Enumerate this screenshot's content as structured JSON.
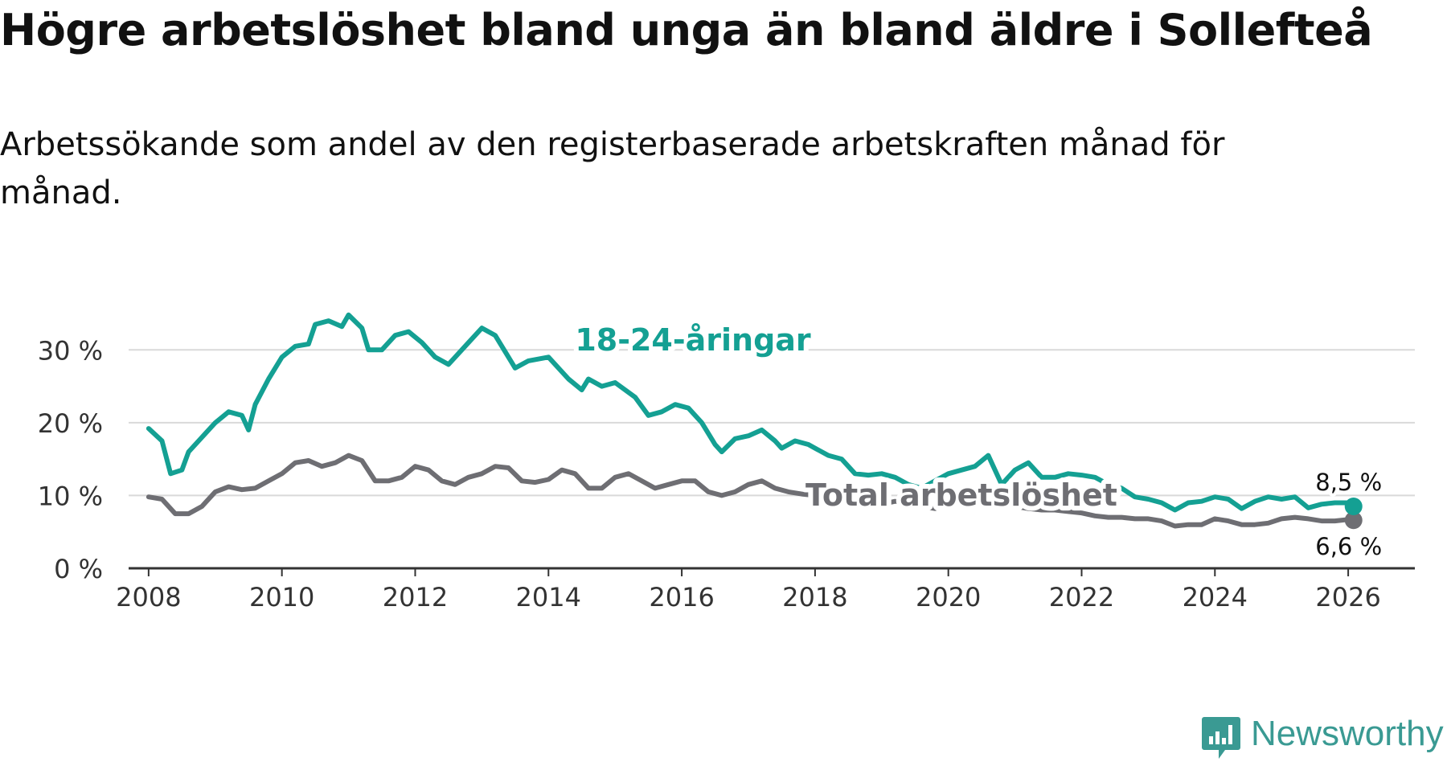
{
  "header": {
    "title": "Högre arbetslöshet bland unga än bland äldre i Sollefteå",
    "subtitle": "Arbetssökande som andel av den registerbaserade arbetskraften månad för månad."
  },
  "brand": {
    "name": "Newsworthy",
    "icon": "newsworthy-logo-icon",
    "color": "#3a9a93"
  },
  "colors": {
    "youth": "#14a093",
    "total": "#6e6e73",
    "grid": "#d9d9d9",
    "axis": "#333333"
  },
  "chart_data": {
    "type": "line",
    "title": "Högre arbetslöshet bland unga än bland äldre i Sollefteå",
    "subtitle": "Arbetssökande som andel av den registerbaserade arbetskraften månad för månad.",
    "xlabel": "",
    "ylabel": "",
    "xlim": [
      2007.7,
      2027.0
    ],
    "ylim": [
      0,
      35
    ],
    "x_ticks": [
      {
        "value": 2008,
        "label": "2008"
      },
      {
        "value": 2010,
        "label": "2010"
      },
      {
        "value": 2012,
        "label": "2012"
      },
      {
        "value": 2014,
        "label": "2014"
      },
      {
        "value": 2016,
        "label": "2016"
      },
      {
        "value": 2018,
        "label": "2018"
      },
      {
        "value": 2020,
        "label": "2020"
      },
      {
        "value": 2022,
        "label": "2022"
      },
      {
        "value": 2024,
        "label": "2024"
      },
      {
        "value": 2026,
        "label": "2026"
      }
    ],
    "y_ticks": [
      {
        "value": 0,
        "label": "0 %"
      },
      {
        "value": 10,
        "label": "10 %"
      },
      {
        "value": 20,
        "label": "20 %"
      },
      {
        "value": 30,
        "label": "30 %"
      }
    ],
    "grid": true,
    "series": [
      {
        "name": "18-24-åringar",
        "label": "18-24-åringar",
        "end_label": "8,5 %",
        "color": "#14a093",
        "points": [
          [
            2008.0,
            19.2
          ],
          [
            2008.2,
            17.5
          ],
          [
            2008.33,
            13.0
          ],
          [
            2008.5,
            13.5
          ],
          [
            2008.6,
            16.0
          ],
          [
            2008.8,
            18.0
          ],
          [
            2009.0,
            20.0
          ],
          [
            2009.2,
            21.5
          ],
          [
            2009.4,
            21.0
          ],
          [
            2009.5,
            19.0
          ],
          [
            2009.6,
            22.5
          ],
          [
            2009.8,
            26.0
          ],
          [
            2010.0,
            29.0
          ],
          [
            2010.2,
            30.5
          ],
          [
            2010.4,
            30.8
          ],
          [
            2010.5,
            33.5
          ],
          [
            2010.7,
            34.0
          ],
          [
            2010.9,
            33.2
          ],
          [
            2011.0,
            34.8
          ],
          [
            2011.2,
            33.0
          ],
          [
            2011.3,
            30.0
          ],
          [
            2011.5,
            30.0
          ],
          [
            2011.7,
            32.0
          ],
          [
            2011.9,
            32.5
          ],
          [
            2012.1,
            31.0
          ],
          [
            2012.3,
            29.0
          ],
          [
            2012.5,
            28.0
          ],
          [
            2012.8,
            31.0
          ],
          [
            2013.0,
            33.0
          ],
          [
            2013.2,
            32.0
          ],
          [
            2013.5,
            27.5
          ],
          [
            2013.7,
            28.5
          ],
          [
            2014.0,
            29.0
          ],
          [
            2014.3,
            26.0
          ],
          [
            2014.5,
            24.5
          ],
          [
            2014.6,
            26.0
          ],
          [
            2014.8,
            25.0
          ],
          [
            2015.0,
            25.5
          ],
          [
            2015.3,
            23.5
          ],
          [
            2015.5,
            21.0
          ],
          [
            2015.7,
            21.5
          ],
          [
            2015.9,
            22.5
          ],
          [
            2016.1,
            22.0
          ],
          [
            2016.3,
            20.0
          ],
          [
            2016.5,
            17.0
          ],
          [
            2016.6,
            16.0
          ],
          [
            2016.8,
            17.8
          ],
          [
            2017.0,
            18.2
          ],
          [
            2017.2,
            19.0
          ],
          [
            2017.4,
            17.5
          ],
          [
            2017.5,
            16.5
          ],
          [
            2017.7,
            17.5
          ],
          [
            2017.9,
            17.0
          ],
          [
            2018.0,
            16.5
          ],
          [
            2018.2,
            15.5
          ],
          [
            2018.4,
            15.0
          ],
          [
            2018.6,
            13.0
          ],
          [
            2018.8,
            12.8
          ],
          [
            2019.0,
            13.0
          ],
          [
            2019.2,
            12.5
          ],
          [
            2019.4,
            11.5
          ],
          [
            2019.6,
            11.0
          ],
          [
            2019.8,
            12.0
          ],
          [
            2020.0,
            13.0
          ],
          [
            2020.2,
            13.5
          ],
          [
            2020.4,
            14.0
          ],
          [
            2020.6,
            15.5
          ],
          [
            2020.8,
            11.5
          ],
          [
            2021.0,
            13.5
          ],
          [
            2021.2,
            14.5
          ],
          [
            2021.4,
            12.5
          ],
          [
            2021.6,
            12.5
          ],
          [
            2021.8,
            13.0
          ],
          [
            2022.0,
            12.8
          ],
          [
            2022.2,
            12.5
          ],
          [
            2022.4,
            11.5
          ],
          [
            2022.6,
            11.0
          ],
          [
            2022.8,
            9.8
          ],
          [
            2023.0,
            9.5
          ],
          [
            2023.2,
            9.0
          ],
          [
            2023.4,
            8.0
          ],
          [
            2023.6,
            9.0
          ],
          [
            2023.8,
            9.2
          ],
          [
            2024.0,
            9.8
          ],
          [
            2024.2,
            9.5
          ],
          [
            2024.4,
            8.2
          ],
          [
            2024.6,
            9.2
          ],
          [
            2024.8,
            9.8
          ],
          [
            2025.0,
            9.5
          ],
          [
            2025.2,
            9.8
          ],
          [
            2025.4,
            8.3
          ],
          [
            2025.6,
            8.8
          ],
          [
            2025.8,
            9.0
          ],
          [
            2026.0,
            9.0
          ],
          [
            2026.08,
            8.5
          ]
        ]
      },
      {
        "name": "Total arbetslöshet",
        "label": "Total arbetslöshet",
        "end_label": "6,6 %",
        "color": "#6e6e73",
        "points": [
          [
            2008.0,
            9.8
          ],
          [
            2008.2,
            9.5
          ],
          [
            2008.4,
            7.5
          ],
          [
            2008.6,
            7.5
          ],
          [
            2008.8,
            8.5
          ],
          [
            2009.0,
            10.5
          ],
          [
            2009.2,
            11.2
          ],
          [
            2009.4,
            10.8
          ],
          [
            2009.6,
            11.0
          ],
          [
            2009.8,
            12.0
          ],
          [
            2010.0,
            13.0
          ],
          [
            2010.2,
            14.5
          ],
          [
            2010.4,
            14.8
          ],
          [
            2010.6,
            14.0
          ],
          [
            2010.8,
            14.5
          ],
          [
            2011.0,
            15.5
          ],
          [
            2011.2,
            14.8
          ],
          [
            2011.4,
            12.0
          ],
          [
            2011.6,
            12.0
          ],
          [
            2011.8,
            12.5
          ],
          [
            2012.0,
            14.0
          ],
          [
            2012.2,
            13.5
          ],
          [
            2012.4,
            12.0
          ],
          [
            2012.6,
            11.5
          ],
          [
            2012.8,
            12.5
          ],
          [
            2013.0,
            13.0
          ],
          [
            2013.2,
            14.0
          ],
          [
            2013.4,
            13.8
          ],
          [
            2013.6,
            12.0
          ],
          [
            2013.8,
            11.8
          ],
          [
            2014.0,
            12.2
          ],
          [
            2014.2,
            13.5
          ],
          [
            2014.4,
            13.0
          ],
          [
            2014.6,
            11.0
          ],
          [
            2014.8,
            11.0
          ],
          [
            2015.0,
            12.5
          ],
          [
            2015.2,
            13.0
          ],
          [
            2015.4,
            12.0
          ],
          [
            2015.6,
            11.0
          ],
          [
            2015.8,
            11.5
          ],
          [
            2016.0,
            12.0
          ],
          [
            2016.2,
            12.0
          ],
          [
            2016.4,
            10.5
          ],
          [
            2016.6,
            10.0
          ],
          [
            2016.8,
            10.5
          ],
          [
            2017.0,
            11.5
          ],
          [
            2017.2,
            12.0
          ],
          [
            2017.4,
            11.0
          ],
          [
            2017.6,
            10.5
          ],
          [
            2017.8,
            10.2
          ],
          [
            2018.0,
            10.0
          ],
          [
            2018.2,
            9.5
          ],
          [
            2018.4,
            9.2
          ],
          [
            2018.6,
            9.0
          ],
          [
            2018.8,
            8.8
          ],
          [
            2019.0,
            8.8
          ],
          [
            2019.2,
            9.2
          ],
          [
            2019.4,
            9.0
          ],
          [
            2019.6,
            8.5
          ],
          [
            2019.8,
            8.2
          ],
          [
            2020.0,
            8.8
          ],
          [
            2020.2,
            9.5
          ],
          [
            2020.4,
            9.8
          ],
          [
            2020.6,
            9.5
          ],
          [
            2020.8,
            8.8
          ],
          [
            2021.0,
            8.5
          ],
          [
            2021.2,
            8.2
          ],
          [
            2021.4,
            8.0
          ],
          [
            2021.6,
            8.0
          ],
          [
            2021.8,
            7.8
          ],
          [
            2022.0,
            7.6
          ],
          [
            2022.2,
            7.2
          ],
          [
            2022.4,
            7.0
          ],
          [
            2022.6,
            7.0
          ],
          [
            2022.8,
            6.8
          ],
          [
            2023.0,
            6.8
          ],
          [
            2023.2,
            6.5
          ],
          [
            2023.4,
            5.8
          ],
          [
            2023.6,
            6.0
          ],
          [
            2023.8,
            6.0
          ],
          [
            2024.0,
            6.8
          ],
          [
            2024.2,
            6.5
          ],
          [
            2024.4,
            6.0
          ],
          [
            2024.6,
            6.0
          ],
          [
            2024.8,
            6.2
          ],
          [
            2025.0,
            6.8
          ],
          [
            2025.2,
            7.0
          ],
          [
            2025.4,
            6.8
          ],
          [
            2025.6,
            6.5
          ],
          [
            2025.8,
            6.5
          ],
          [
            2026.0,
            6.7
          ],
          [
            2026.08,
            6.6
          ]
        ]
      }
    ]
  }
}
